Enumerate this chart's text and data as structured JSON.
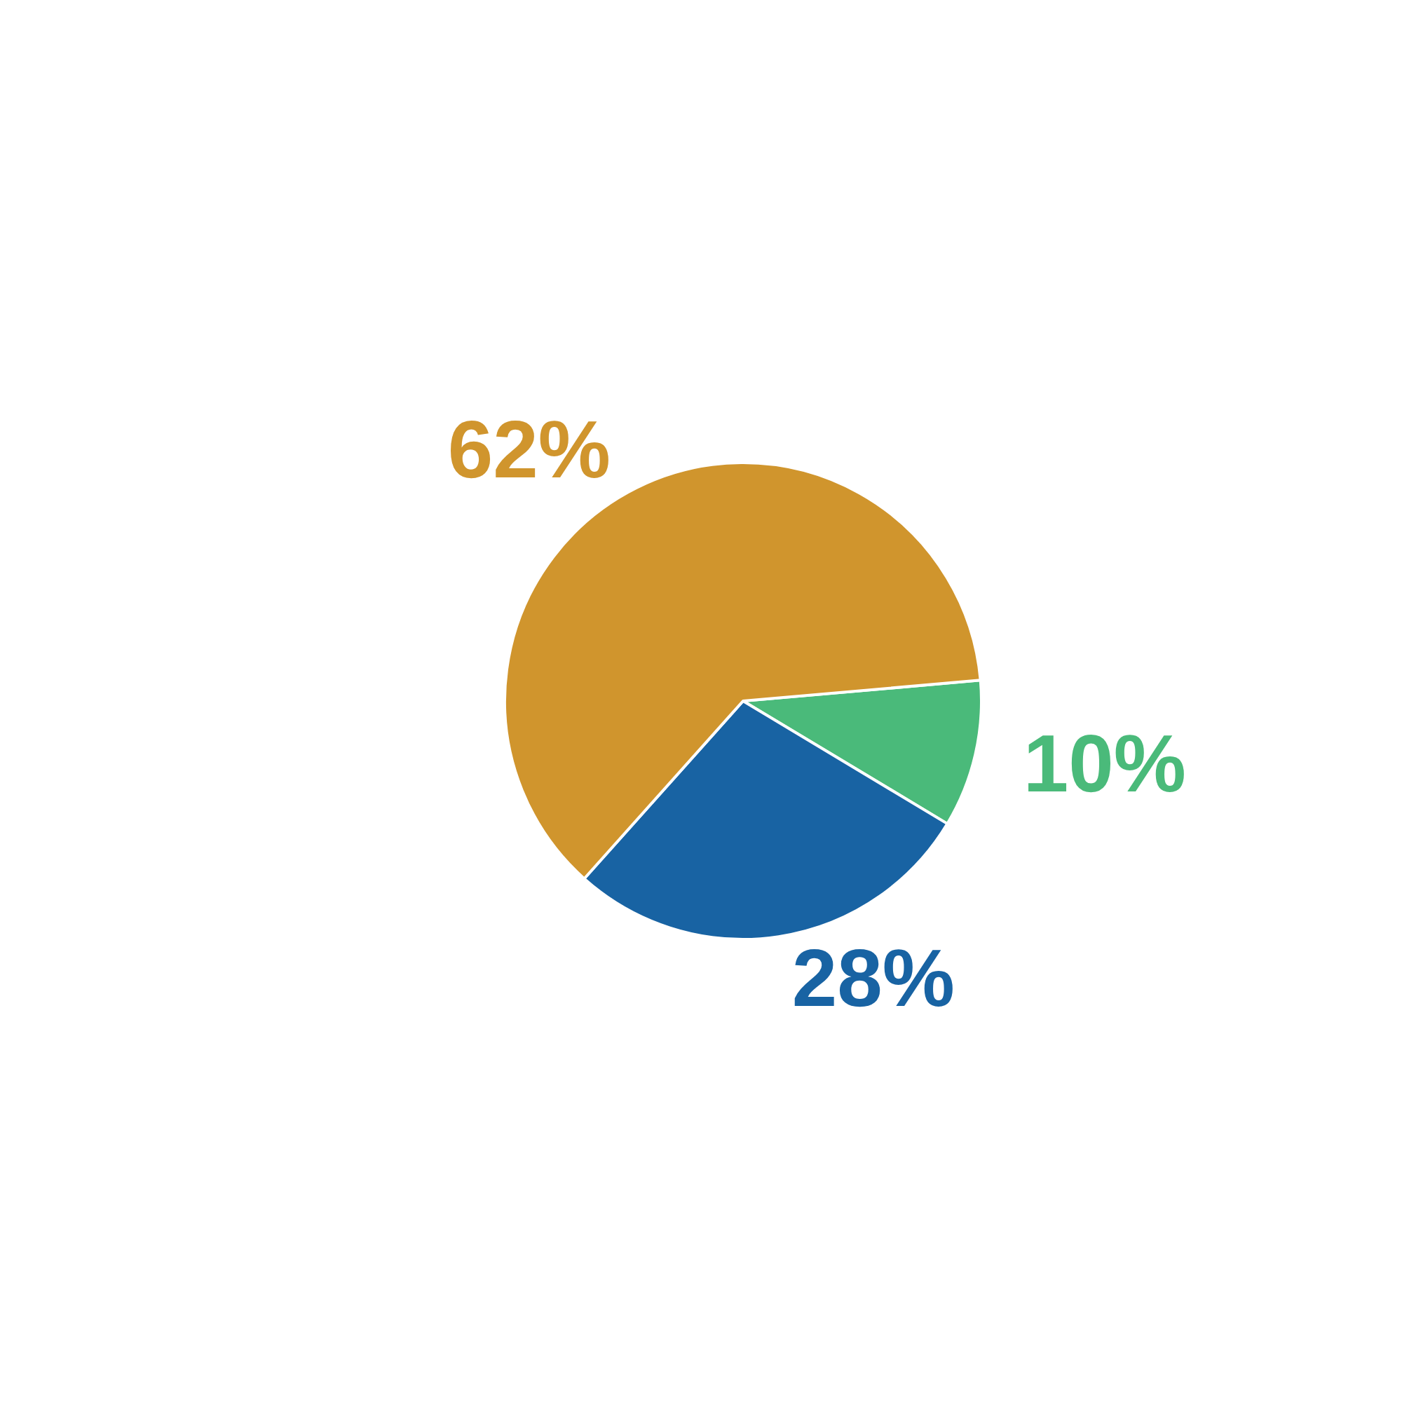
{
  "chart_data": {
    "type": "pie",
    "categories": [
      null,
      null,
      null
    ],
    "values": [
      10,
      28,
      62
    ],
    "colors": [
      "#4aba7a",
      "#1863a3",
      "#d0952d"
    ],
    "value_labels": [
      "10%",
      "28%",
      "62%"
    ]
  }
}
